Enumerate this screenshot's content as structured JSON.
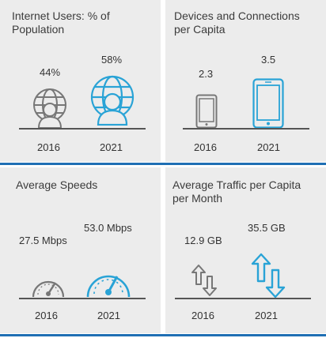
{
  "colors": {
    "panel_bg": "#ececec",
    "accent_blue": "#29a3d6",
    "rule_blue": "#1f6fb4",
    "icon_gray": "#777777",
    "baseline": "#555555"
  },
  "panels": [
    {
      "title": "Internet Users: % of\nPopulation",
      "icon": "user-globe-icon",
      "items": [
        {
          "year": "2016",
          "value": "44%"
        },
        {
          "year": "2021",
          "value": "58%"
        }
      ]
    },
    {
      "title": "Devices and Connections\nper Capita",
      "icon": "tablet-device-icon",
      "items": [
        {
          "year": "2016",
          "value": "2.3"
        },
        {
          "year": "2021",
          "value": "3.5"
        }
      ]
    },
    {
      "title": "Average Speeds",
      "icon": "speedometer-icon",
      "items": [
        {
          "year": "2016",
          "value": "27.5 Mbps"
        },
        {
          "year": "2021",
          "value": "53.0 Mbps"
        }
      ]
    },
    {
      "title": "Average Traffic per Capita\nper Month",
      "icon": "up-down-arrows-icon",
      "items": [
        {
          "year": "2016",
          "value": "12.9 GB"
        },
        {
          "year": "2021",
          "value": "35.5 GB"
        }
      ]
    }
  ]
}
